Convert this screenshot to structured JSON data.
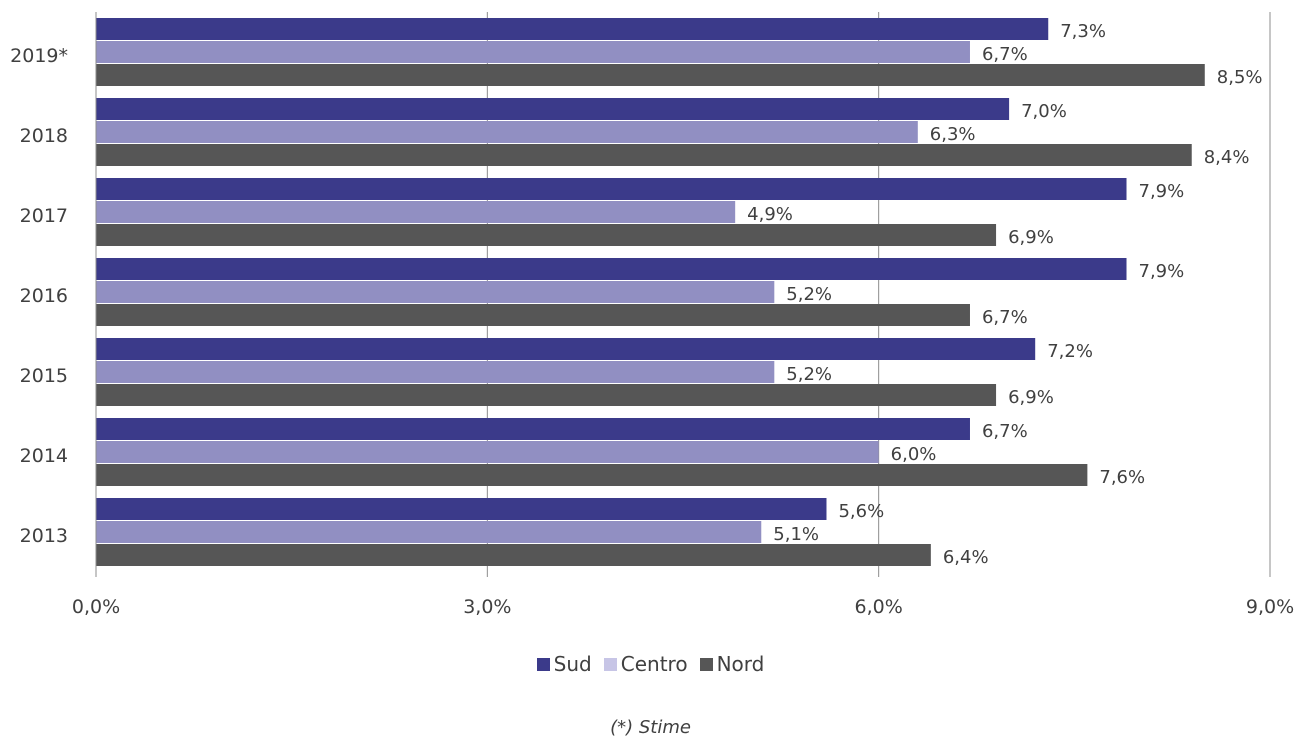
{
  "chart_data": {
    "type": "bar",
    "orientation": "horizontal",
    "categories": [
      "2019*",
      "2018",
      "2017",
      "2016",
      "2015",
      "2014",
      "2013"
    ],
    "series": [
      {
        "name": "Sud",
        "color": "#3b3a8a",
        "values": [
          7.3,
          7.0,
          7.9,
          7.9,
          7.2,
          6.7,
          5.6
        ],
        "labels": [
          "7,3%",
          "7,0%",
          "7,9%",
          "7,9%",
          "7,2%",
          "6,7%",
          "5,6%"
        ]
      },
      {
        "name": "Centro",
        "color": "#918fc2",
        "values": [
          6.7,
          6.3,
          4.9,
          5.2,
          5.2,
          6.0,
          5.1
        ],
        "labels": [
          "6,7%",
          "6,3%",
          "4,9%",
          "5,2%",
          "5,2%",
          "6,0%",
          "5,1%"
        ]
      },
      {
        "name": "Nord",
        "color": "#565656",
        "values": [
          8.5,
          8.4,
          6.9,
          6.7,
          6.9,
          7.6,
          6.4
        ],
        "labels": [
          "8,5%",
          "8,4%",
          "6,9%",
          "6,7%",
          "6,9%",
          "7,6%",
          "6,4%"
        ]
      }
    ],
    "xlim": [
      0,
      9
    ],
    "xticks": [
      0,
      3,
      6,
      9
    ],
    "xtick_labels": [
      "0,0%",
      "3,0%",
      "6,0%",
      "9,0%"
    ],
    "grid": true,
    "legend_position": "bottom"
  },
  "legend": {
    "items": [
      {
        "label": "Sud",
        "color": "#3b3a8a"
      },
      {
        "label": "Centro",
        "color": "#c7c5e6"
      },
      {
        "label": "Nord",
        "color": "#565656"
      }
    ]
  },
  "note": "(*) Stime"
}
